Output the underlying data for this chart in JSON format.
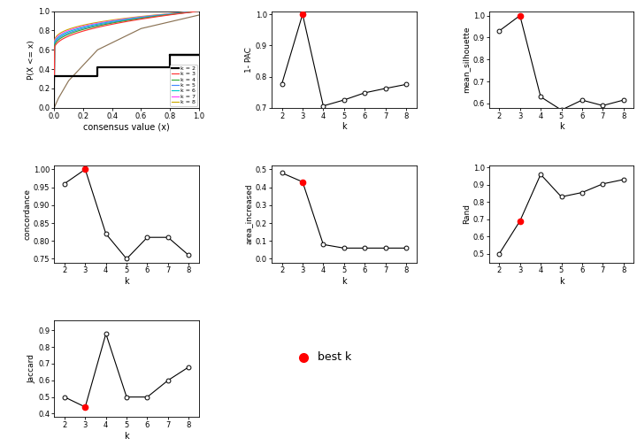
{
  "ecdf_colors": {
    "k2": "#000000",
    "k3": "#FF3333",
    "k4": "#33AA33",
    "k5": "#4488FF",
    "k6": "#00CCCC",
    "k7": "#FF44FF",
    "k8": "#CCAA00"
  },
  "ecdf_lws": {
    "k2": 1.8,
    "k3": 0.9,
    "k4": 0.9,
    "k5": 0.9,
    "k6": 0.9,
    "k7": 0.9,
    "k8": 0.9
  },
  "ecdf_xlabel": "consensus value (x)",
  "ecdf_ylabel": "P(X <= x)",
  "pac": {
    "k": [
      2,
      3,
      4,
      5,
      6,
      7,
      8
    ],
    "y": [
      0.777,
      1.0,
      0.706,
      0.725,
      0.748,
      0.762,
      0.775
    ],
    "best_k": 3,
    "ylabel": "1- PAC",
    "ylim": [
      0.7,
      1.01
    ],
    "yticks": [
      0.7,
      0.8,
      0.9,
      1.0
    ]
  },
  "silhouette": {
    "k": [
      2,
      3,
      4,
      5,
      6,
      7,
      8
    ],
    "y": [
      0.93,
      1.0,
      0.63,
      0.57,
      0.615,
      0.59,
      0.615
    ],
    "best_k": 3,
    "ylabel": "mean_silhouette",
    "ylim": [
      0.58,
      1.02
    ],
    "yticks": [
      0.6,
      0.7,
      0.8,
      0.9,
      1.0
    ]
  },
  "concordance": {
    "k": [
      2,
      3,
      4,
      5,
      6,
      7,
      8
    ],
    "y": [
      0.96,
      1.0,
      0.82,
      0.75,
      0.81,
      0.81,
      0.76
    ],
    "best_k": 3,
    "ylabel": "concordance",
    "ylim": [
      0.74,
      1.01
    ],
    "yticks": [
      0.75,
      0.8,
      0.85,
      0.9,
      0.95,
      1.0
    ]
  },
  "area_increased": {
    "k": [
      2,
      3,
      4,
      5,
      6,
      7,
      8
    ],
    "y": [
      0.48,
      0.43,
      0.08,
      0.06,
      0.06,
      0.06,
      0.06
    ],
    "best_k": 3,
    "ylabel": "area_increased",
    "ylim": [
      -0.02,
      0.52
    ],
    "yticks": [
      0.0,
      0.1,
      0.2,
      0.3,
      0.4,
      0.5
    ]
  },
  "rand": {
    "k": [
      2,
      3,
      4,
      5,
      6,
      7,
      8
    ],
    "y": [
      0.5,
      0.69,
      0.96,
      0.83,
      0.855,
      0.905,
      0.93
    ],
    "best_k": 3,
    "ylabel": "Rand",
    "ylim": [
      0.45,
      1.01
    ],
    "yticks": [
      0.5,
      0.6,
      0.7,
      0.8,
      0.9,
      1.0
    ]
  },
  "jaccard": {
    "k": [
      2,
      3,
      4,
      5,
      6,
      7,
      8
    ],
    "y": [
      0.5,
      0.44,
      0.88,
      0.5,
      0.5,
      0.6,
      0.68
    ],
    "best_k": 3,
    "ylabel": "Jaccard",
    "ylim": [
      0.38,
      0.96
    ],
    "yticks": [
      0.4,
      0.5,
      0.6,
      0.7,
      0.8,
      0.9
    ]
  },
  "k_xlabel": "k",
  "line_color": "#000000",
  "best_color": "#FF0000",
  "bg_color": "#FFFFFF"
}
